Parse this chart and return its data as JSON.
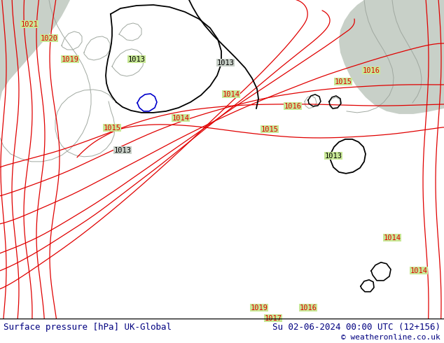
{
  "title": "Surface pressure [hPa] UK-Global",
  "datetime_str": "Su 02-06-2024 00:00 UTC (12+156)",
  "copyright": "© weatheronline.co.uk",
  "land_green": "#c8e896",
  "sea_gray": "#c8d0c8",
  "coast_gray": "#a0a8a0",
  "red": "#e00000",
  "black": "#000000",
  "blue": "#0000cc",
  "navy": "#000080",
  "figsize": [
    6.34,
    4.9
  ],
  "dpi": 100
}
